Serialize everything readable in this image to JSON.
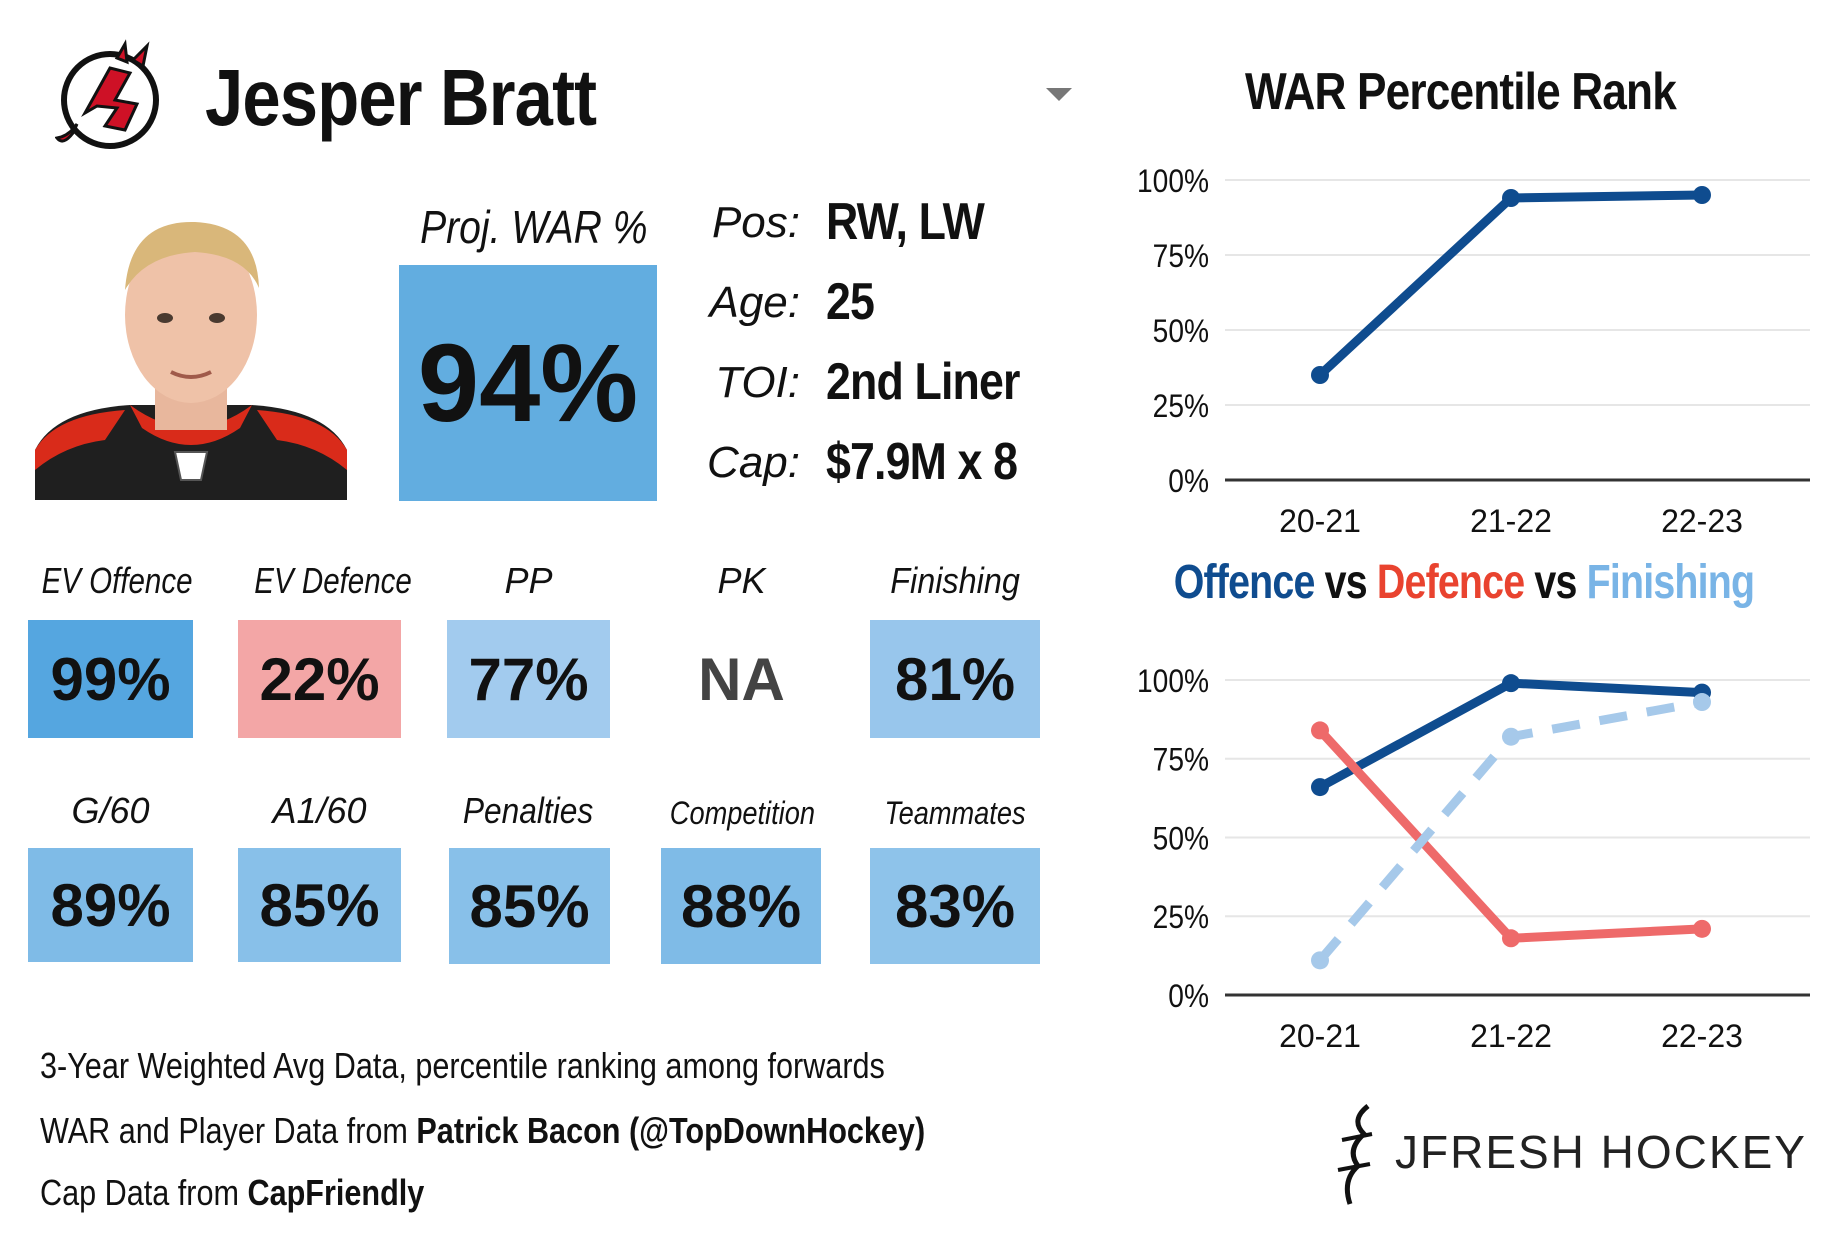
{
  "header": {
    "player_name": "Jesper Bratt",
    "team_logo": "devils-logo-icon"
  },
  "war": {
    "label": "Proj. WAR %",
    "value": "94%",
    "color": "#62ade0"
  },
  "info": [
    {
      "key": "Pos:",
      "value": "RW, LW"
    },
    {
      "key": "Age:",
      "value": "25"
    },
    {
      "key": "TOI:",
      "value": "2nd Liner"
    },
    {
      "key": "Cap:",
      "value": "$7.9M x 8"
    }
  ],
  "stats_row1": [
    {
      "label": "EV Offence",
      "value": "99%",
      "color": "#55a6e0"
    },
    {
      "label": "EV Defence",
      "value": "22%",
      "color": "#f3a6a6"
    },
    {
      "label": "PP",
      "value": "77%",
      "color": "#a2cbee"
    },
    {
      "label": "PK",
      "value": "NA",
      "color": "#ffffff"
    },
    {
      "label": "Finishing",
      "value": "81%",
      "color": "#98c6ec"
    }
  ],
  "stats_row2": [
    {
      "label": "G/60",
      "value": "89%",
      "color": "#7fbbe7"
    },
    {
      "label": "A1/60",
      "value": "85%",
      "color": "#88c0e9"
    },
    {
      "label": "Penalties",
      "value": "85%",
      "color": "#88c0e9"
    },
    {
      "label": "Competition",
      "value": "88%",
      "color": "#7fbbe7"
    },
    {
      "label": "Teammates",
      "value": "83%",
      "color": "#8ec3ea"
    }
  ],
  "footer": {
    "line1": "3-Year Weighted Avg Data, percentile ranking among forwards",
    "line2_prefix": "WAR and Player Data from ",
    "line2_bold": "Patrick Bacon (@TopDownHockey)",
    "line3_prefix": "Cap Data from ",
    "line3_bold": "CapFriendly"
  },
  "brand": {
    "name": "JFRESH HOCKEY",
    "icon": "jfresh-logo-icon"
  },
  "chart_data": [
    {
      "type": "line",
      "title": "WAR Percentile Rank",
      "categories": [
        "20-21",
        "21-22",
        "22-23"
      ],
      "series": [
        {
          "values": [
            35,
            94,
            95
          ],
          "color": "#0f4c8f"
        }
      ],
      "ylim": [
        0,
        100
      ],
      "yticks": [
        "0%",
        "25%",
        "50%",
        "75%",
        "100%"
      ],
      "grid": true
    },
    {
      "type": "line",
      "title_parts": [
        {
          "text": "Offence",
          "color": "#0f4c8f"
        },
        {
          "text": " vs ",
          "color": "#111111"
        },
        {
          "text": "Defence",
          "color": "#e9432f"
        },
        {
          "text": " vs ",
          "color": "#111111"
        },
        {
          "text": "Finishing",
          "color": "#79b4e6"
        }
      ],
      "categories": [
        "20-21",
        "21-22",
        "22-23"
      ],
      "series": [
        {
          "values": [
            66,
            99,
            96
          ],
          "color": "#0f4c8f",
          "style": "solid"
        },
        {
          "values": [
            84,
            18,
            21
          ],
          "color": "#ee6a6a",
          "style": "solid"
        },
        {
          "values": [
            11,
            82,
            93
          ],
          "color": "#a6c9ea",
          "style": "dashed"
        }
      ],
      "ylim": [
        0,
        100
      ],
      "yticks": [
        "0%",
        "25%",
        "50%",
        "75%",
        "100%"
      ],
      "grid": true
    }
  ]
}
